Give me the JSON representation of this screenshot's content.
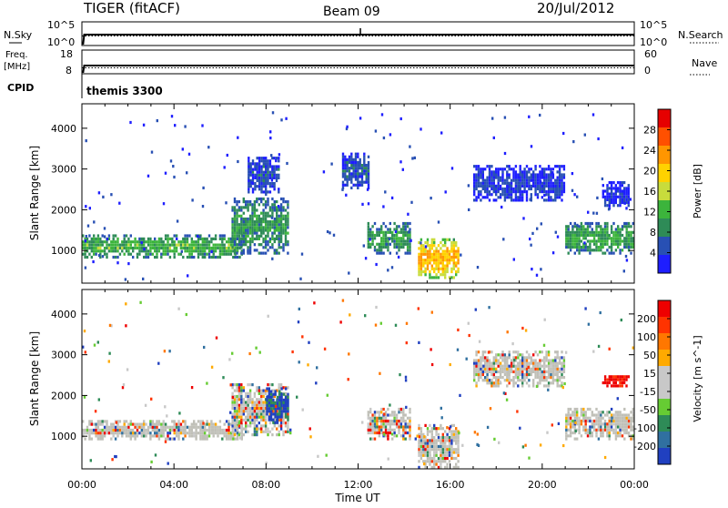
{
  "header": {
    "radar": "TIGER (fitACF)",
    "beam": "Beam 09",
    "date": "20/Jul/2012"
  },
  "top_panel": {
    "left_label": "N.Sky",
    "left_ticks": [
      "10^5",
      "10^0"
    ],
    "right_label": "N.Search",
    "right_ticks": [
      "10^5",
      "10^0"
    ],
    "freq_label_1": "Freq.",
    "freq_label_2": "[MHz]",
    "freq_ticks": [
      "18",
      "8"
    ],
    "nave_label": "Nave",
    "nave_ticks": [
      "60",
      "0"
    ],
    "cpid_label": "CPID",
    "cpid_value": "themis 3300"
  },
  "colors": {
    "power_scale": [
      "#1e1eff",
      "#2850b4",
      "#2e8b57",
      "#3cb43c",
      "#c8dc3c",
      "#ffd200",
      "#ff9600",
      "#ff5000",
      "#e60000"
    ],
    "velocity_scale": [
      "#2040c0",
      "#3070a0",
      "#2e8b57",
      "#66cc33",
      "#c8c8c8",
      "#c8c8c8",
      "#ffaa00",
      "#ff7700",
      "#ff3300",
      "#ee0000"
    ],
    "ground_scatter": "#c0c0b8"
  },
  "chart_data": [
    {
      "type": "heatmap",
      "name": "power",
      "ylabel": "Slant Range [km]",
      "y_ticks": [
        "1000",
        "2000",
        "3000",
        "4000"
      ],
      "ylim": [
        200,
        4600
      ],
      "xlim_hours": [
        0,
        24
      ],
      "colorbar_label": "Power [dB]",
      "colorbar_ticks": [
        "4",
        "8",
        "12",
        "16",
        "20",
        "24",
        "28"
      ],
      "colorbar_range": [
        0,
        32
      ],
      "regions": [
        {
          "t0": 0.0,
          "t1": 7.0,
          "r0": 800,
          "r1": 1400,
          "peak": 12
        },
        {
          "t0": 6.5,
          "t1": 9.0,
          "r0": 900,
          "r1": 2300,
          "peak": 10
        },
        {
          "t0": 7.2,
          "t1": 8.6,
          "r0": 2400,
          "r1": 3300,
          "peak": 5
        },
        {
          "t0": 11.3,
          "t1": 12.5,
          "r0": 2500,
          "r1": 3400,
          "peak": 5
        },
        {
          "t0": 12.4,
          "t1": 14.3,
          "r0": 900,
          "r1": 1700,
          "peak": 10
        },
        {
          "t0": 14.6,
          "t1": 16.4,
          "r0": 300,
          "r1": 1300,
          "peak": 22
        },
        {
          "t0": 17.0,
          "t1": 21.0,
          "r0": 2200,
          "r1": 3100,
          "peak": 4
        },
        {
          "t0": 21.0,
          "t1": 24.0,
          "r0": 900,
          "r1": 1700,
          "peak": 11
        },
        {
          "t0": 22.6,
          "t1": 23.8,
          "r0": 2000,
          "r1": 2700,
          "peak": 3
        }
      ]
    },
    {
      "type": "heatmap",
      "name": "velocity",
      "ylabel": "Slant Range [km]",
      "y_ticks": [
        "1000",
        "2000",
        "3000",
        "4000"
      ],
      "ylim": [
        200,
        4600
      ],
      "xlim_hours": [
        0,
        24
      ],
      "colorbar_label": "Velocity [m s^-1]",
      "colorbar_ticks": [
        "200",
        "100",
        "50",
        "15",
        "-15",
        "-50",
        "-100",
        "-200"
      ],
      "regions": [
        {
          "t0": 0.0,
          "t1": 7.0,
          "r0": 900,
          "r1": 1400,
          "mode": "ground"
        },
        {
          "t0": 6.5,
          "t1": 9.0,
          "r0": 1000,
          "r1": 2300,
          "mode": "mixed"
        },
        {
          "t0": 8.0,
          "t1": 9.0,
          "r0": 1300,
          "r1": 2200,
          "mode": "blue"
        },
        {
          "t0": 12.4,
          "t1": 14.3,
          "r0": 900,
          "r1": 1700,
          "mode": "mixed"
        },
        {
          "t0": 14.6,
          "t1": 16.4,
          "r0": 200,
          "r1": 1300,
          "mode": "ground"
        },
        {
          "t0": 17.0,
          "t1": 21.0,
          "r0": 2200,
          "r1": 3100,
          "mode": "ground"
        },
        {
          "t0": 21.0,
          "t1": 24.0,
          "r0": 900,
          "r1": 1700,
          "mode": "ground"
        },
        {
          "t0": 22.6,
          "t1": 23.8,
          "r0": 2200,
          "r1": 2500,
          "mode": "red"
        }
      ]
    }
  ],
  "x_axis": {
    "ticks": [
      "00:00",
      "04:00",
      "08:00",
      "12:00",
      "16:00",
      "20:00",
      "00:00"
    ],
    "label": "Time UT"
  }
}
